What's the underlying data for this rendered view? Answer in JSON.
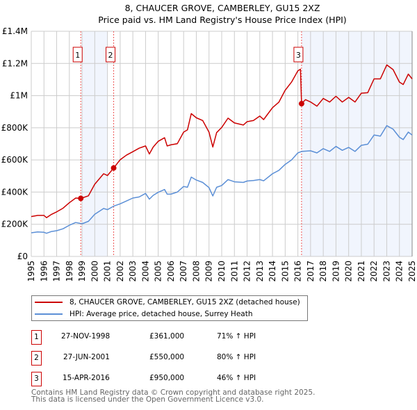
{
  "chart_data": {
    "type": "line",
    "title": "8, CHAUCER GROVE, CAMBERLEY, GU15 2XZ",
    "subtitle": "Price paid vs. HM Land Registry's House Price Index (HPI)",
    "xlabel": "",
    "ylabel": "",
    "xlim": [
      1995,
      2025
    ],
    "ylim": [
      0,
      1400000
    ],
    "grid": true,
    "x_ticks": [
      "1995",
      "1996",
      "1997",
      "1998",
      "1999",
      "2000",
      "2001",
      "2002",
      "2003",
      "2004",
      "2005",
      "2006",
      "2007",
      "2008",
      "2009",
      "2010",
      "2011",
      "2012",
      "2013",
      "2014",
      "2015",
      "2016",
      "2017",
      "2018",
      "2019",
      "2020",
      "2021",
      "2022",
      "2023",
      "2024",
      "2025"
    ],
    "y_ticks": [
      {
        "value": 0,
        "label": "£0"
      },
      {
        "value": 200000,
        "label": "£200K"
      },
      {
        "value": 400000,
        "label": "£400K"
      },
      {
        "value": 600000,
        "label": "£600K"
      },
      {
        "value": 800000,
        "label": "£800K"
      },
      {
        "value": 1000000,
        "label": "£1M"
      },
      {
        "value": 1200000,
        "label": "£1.2M"
      },
      {
        "value": 1400000,
        "label": "£1.4M"
      }
    ],
    "shaded_ranges": [
      [
        1999.0,
        2001.0
      ],
      [
        2016.29,
        2025.0
      ]
    ],
    "series": [
      {
        "name": "8, CHAUCER GROVE, CAMBERLEY, GU15 2XZ (detached house)",
        "color": "#cc0000",
        "x": [
          1995,
          1995.5,
          1996,
          1996.2,
          1996.6,
          1997,
          1997.5,
          1998,
          1998.5,
          1998.9,
          1999.5,
          2000,
          2000.7,
          2001,
          2001.49,
          2002,
          2002.5,
          2003,
          2003.5,
          2004,
          2004.3,
          2004.6,
          2005,
          2005.5,
          2005.7,
          2006,
          2006.5,
          2007,
          2007.3,
          2007.6,
          2008,
          2008.5,
          2009,
          2009.3,
          2009.6,
          2010,
          2010.5,
          2011,
          2011.7,
          2012,
          2012.5,
          2013,
          2013.3,
          2014,
          2014.5,
          2015,
          2015.5,
          2016,
          2016.2,
          2016.29,
          2016.6,
          2017,
          2017.5,
          2018,
          2018.5,
          2019,
          2019.5,
          2020,
          2020.5,
          2021,
          2021.5,
          2022,
          2022.5,
          2023,
          2023.5,
          2024,
          2024.3,
          2024.7,
          2025
        ],
        "values": [
          248000,
          255000,
          255000,
          241000,
          262000,
          277000,
          300000,
          334000,
          363000,
          361000,
          377000,
          449000,
          514000,
          503000,
          550000,
          601000,
          630000,
          651000,
          673000,
          687000,
          637000,
          680000,
          716000,
          738000,
          687000,
          694000,
          701000,
          773000,
          787000,
          888000,
          862000,
          845000,
          773000,
          680000,
          770000,
          802000,
          860000,
          830000,
          817000,
          838000,
          845000,
          873000,
          851000,
          925000,
          959000,
          1033000,
          1084000,
          1154000,
          1164000,
          950000,
          975000,
          960000,
          934000,
          982000,
          960000,
          996000,
          960000,
          989000,
          960000,
          1015000,
          1018000,
          1104000,
          1104000,
          1191000,
          1162000,
          1084000,
          1069000,
          1134000,
          1104000
        ]
      },
      {
        "name": "HPI: Average price, detached house, Surrey Heath",
        "color": "#5b8fd6",
        "x": [
          1995,
          1995.5,
          1996,
          1996.2,
          1996.6,
          1997,
          1997.5,
          1998,
          1998.5,
          1999,
          1999.5,
          2000,
          2000.7,
          2001,
          2001.5,
          2002,
          2002.5,
          2003,
          2003.5,
          2004,
          2004.3,
          2004.6,
          2005,
          2005.5,
          2005.7,
          2006,
          2006.5,
          2007,
          2007.3,
          2007.6,
          2008,
          2008.5,
          2009,
          2009.3,
          2009.6,
          2010,
          2010.5,
          2011,
          2011.7,
          2012,
          2012.5,
          2013,
          2013.3,
          2014,
          2014.5,
          2015,
          2015.5,
          2016,
          2016.3,
          2017,
          2017.5,
          2018,
          2018.5,
          2019,
          2019.5,
          2020,
          2020.5,
          2021,
          2021.5,
          2022,
          2022.5,
          2023,
          2023.5,
          2024,
          2024.3,
          2024.7,
          2025
        ],
        "values": [
          147000,
          152000,
          150000,
          144000,
          155000,
          160000,
          172000,
          194000,
          211000,
          203000,
          218000,
          262000,
          298000,
          291000,
          313000,
          327000,
          345000,
          363000,
          370000,
          392000,
          356000,
          380000,
          399000,
          416000,
          387000,
          387000,
          400000,
          435000,
          430000,
          493000,
          475000,
          460000,
          428000,
          376000,
          430000,
          441000,
          478000,
          464000,
          460000,
          469000,
          472000,
          478000,
          470000,
          514000,
          535000,
          572000,
          600000,
          644000,
          653000,
          657000,
          644000,
          670000,
          653000,
          684000,
          660000,
          678000,
          653000,
          691000,
          698000,
          755000,
          748000,
          813000,
          791000,
          741000,
          727000,
          773000,
          755000
        ]
      }
    ],
    "sales": [
      {
        "label": "1",
        "x": 1998.9,
        "value": 361000,
        "date": "27-NOV-1998",
        "price": "£361,000",
        "hpi": "71% ↑ HPI"
      },
      {
        "label": "2",
        "x": 2001.49,
        "value": 550000,
        "date": "27-JUN-2001",
        "price": "£550,000",
        "hpi": "80% ↑ HPI"
      },
      {
        "label": "3",
        "x": 2016.29,
        "value": 950000,
        "date": "15-APR-2016",
        "price": "£950,000",
        "hpi": "46% ↑ HPI"
      }
    ],
    "legend_placement": "below"
  },
  "footer": {
    "line1": "Contains HM Land Registry data © Crown copyright and database right 2025.",
    "line2": "This data is licensed under the Open Government Licence v3.0."
  }
}
